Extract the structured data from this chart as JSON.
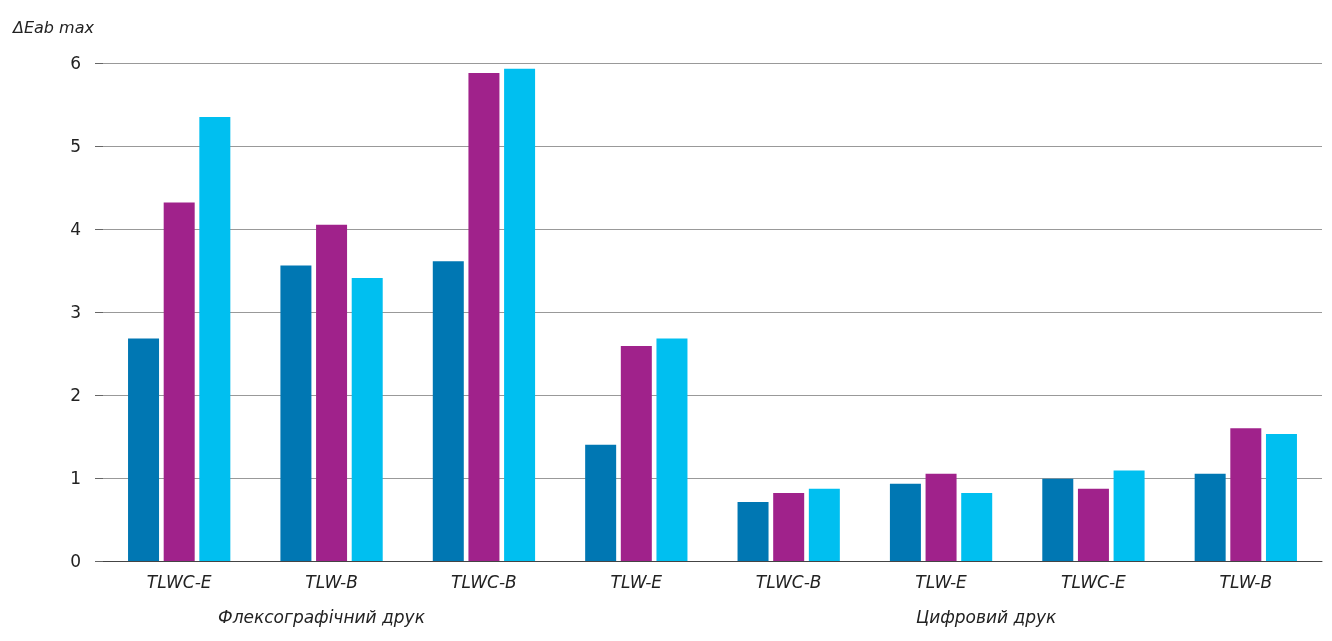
{
  "chart_data": {
    "type": "bar",
    "ylabel": "ΔEab max",
    "categories": [
      "TLWC-E",
      "TLW-B",
      "TLWC-B",
      "TLW-E",
      "TLWC-B",
      "TLW-E",
      "TLWC-E",
      "TLW-B"
    ],
    "series": [
      {
        "color": "#0077b3",
        "values": [
          2.68,
          3.56,
          3.61,
          1.4,
          0.71,
          0.93,
          0.99,
          1.05
        ]
      },
      {
        "color": "#a0228b",
        "values": [
          4.32,
          4.05,
          5.88,
          2.59,
          0.82,
          1.05,
          0.87,
          1.6
        ]
      },
      {
        "color": "#00bff0",
        "values": [
          5.35,
          3.41,
          5.93,
          2.68,
          0.87,
          0.82,
          1.09,
          1.53
        ]
      }
    ],
    "ylim": [
      0,
      6
    ],
    "yticks": [
      0,
      1,
      2,
      3,
      4,
      5,
      6
    ],
    "grid": "y",
    "annotations": [
      "Флексографічний друк",
      "Цифровий друк"
    ]
  }
}
